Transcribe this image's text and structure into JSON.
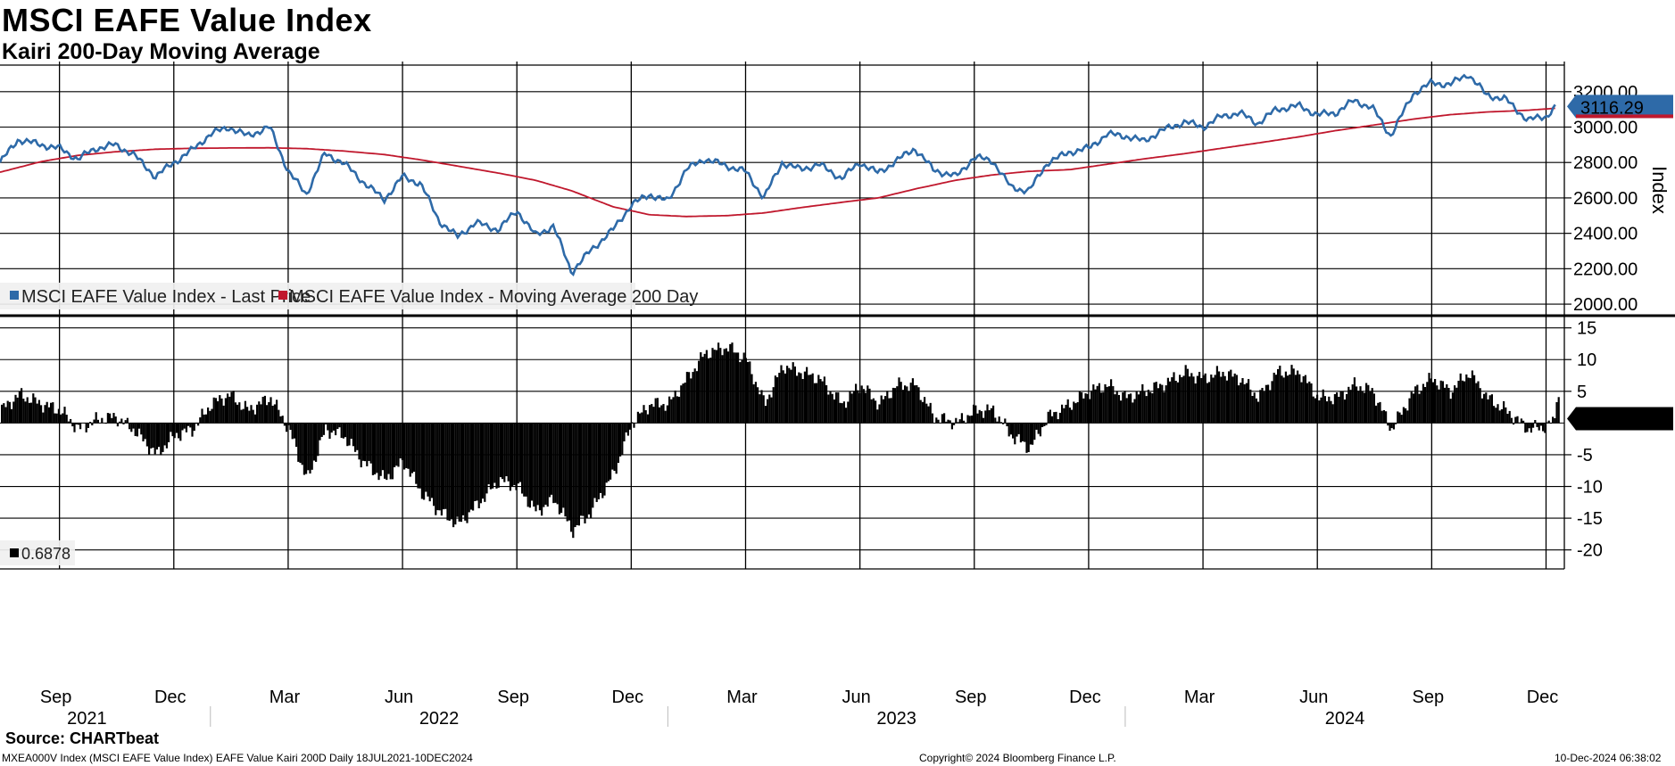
{
  "title": "MSCI EAFE Value Index",
  "subtitle": "Kairi 200-Day Moving Average",
  "source": "Source: CHARTbeat",
  "footer_left": "MXEA000V Index (MSCI EAFE Value Index) EAFE Value Kairi 200D  Daily 18JUL2021-10DEC2024",
  "footer_center": "Copyright© 2024 Bloomberg Finance L.P.",
  "footer_right": "10-Dec-2024 06:38:02",
  "colors": {
    "price": "#2e6aa8",
    "ma": "#c0182d",
    "kairi": "#000000",
    "highlight": "#2e6aa8"
  },
  "chart_data": [
    {
      "type": "line",
      "ylabel": "Index",
      "ylim": [
        1950,
        3350
      ],
      "yticks": [
        "2000.00",
        "2200.00",
        "2400.00",
        "2600.00",
        "2800.00",
        "3000.00",
        "3200.00"
      ],
      "last_value_label": "3116.29",
      "legend": [
        "MSCI EAFE Value Index - Last Price",
        "MSCI EAFE Value Index - Moving Average 200 Day"
      ],
      "series": [
        {
          "name": "MSCI EAFE Value Index - Last Price",
          "color": "#2e6aa8",
          "x": [
            2021.54,
            2021.58,
            2021.63,
            2021.67,
            2021.71,
            2021.75,
            2021.79,
            2021.83,
            2021.88,
            2021.92,
            2021.96,
            2022.0,
            2022.04,
            2022.08,
            2022.13,
            2022.17,
            2022.21,
            2022.25,
            2022.29,
            2022.33,
            2022.38,
            2022.42,
            2022.46,
            2022.5,
            2022.54,
            2022.58,
            2022.63,
            2022.67,
            2022.71,
            2022.75,
            2022.79,
            2022.83,
            2022.88,
            2022.92,
            2022.96,
            2023.0,
            2023.04,
            2023.08,
            2023.13,
            2023.17,
            2023.21,
            2023.25,
            2023.29,
            2023.33,
            2023.38,
            2023.42,
            2023.46,
            2023.5,
            2023.54,
            2023.58,
            2023.63,
            2023.67,
            2023.71,
            2023.75,
            2023.79,
            2023.83,
            2023.88,
            2023.92,
            2023.96,
            2024.0,
            2024.04,
            2024.08,
            2024.13,
            2024.17,
            2024.21,
            2024.25,
            2024.29,
            2024.33,
            2024.38,
            2024.42,
            2024.46,
            2024.5,
            2024.54,
            2024.58,
            2024.63,
            2024.67,
            2024.71,
            2024.75,
            2024.79,
            2024.83,
            2024.88,
            2024.92,
            2024.94
          ],
          "values": [
            2800,
            2930,
            2900,
            2880,
            2820,
            2880,
            2900,
            2850,
            2720,
            2800,
            2870,
            2960,
            3000,
            2950,
            3000,
            2750,
            2620,
            2850,
            2800,
            2700,
            2590,
            2720,
            2680,
            2470,
            2380,
            2460,
            2420,
            2530,
            2390,
            2440,
            2180,
            2300,
            2420,
            2560,
            2620,
            2580,
            2760,
            2820,
            2780,
            2750,
            2600,
            2800,
            2760,
            2790,
            2710,
            2800,
            2740,
            2810,
            2880,
            2760,
            2720,
            2830,
            2810,
            2660,
            2640,
            2800,
            2860,
            2880,
            2960,
            2950,
            2920,
            2980,
            3030,
            3000,
            3060,
            3080,
            3020,
            3100,
            3120,
            3070,
            3080,
            3150,
            3110,
            2950,
            3190,
            3250,
            3240,
            3300,
            3180,
            3160,
            3040,
            3060,
            3116
          ]
        },
        {
          "name": "MSCI EAFE Value Index - Moving Average 200 Day",
          "color": "#c0182d",
          "x": [
            2021.54,
            2021.63,
            2021.71,
            2021.79,
            2021.88,
            2021.96,
            2022.04,
            2022.13,
            2022.21,
            2022.29,
            2022.38,
            2022.46,
            2022.54,
            2022.63,
            2022.71,
            2022.79,
            2022.88,
            2022.96,
            2023.04,
            2023.13,
            2023.21,
            2023.29,
            2023.38,
            2023.46,
            2023.54,
            2023.63,
            2023.71,
            2023.79,
            2023.88,
            2023.96,
            2024.04,
            2024.13,
            2024.21,
            2024.29,
            2024.38,
            2024.46,
            2024.54,
            2024.63,
            2024.71,
            2024.79,
            2024.88,
            2024.94
          ],
          "values": [
            2745,
            2805,
            2840,
            2860,
            2875,
            2880,
            2882,
            2883,
            2878,
            2865,
            2845,
            2815,
            2780,
            2740,
            2700,
            2640,
            2550,
            2505,
            2495,
            2500,
            2515,
            2545,
            2575,
            2600,
            2650,
            2700,
            2730,
            2750,
            2760,
            2790,
            2820,
            2850,
            2880,
            2910,
            2945,
            2980,
            3010,
            3045,
            3070,
            3085,
            3095,
            3106
          ]
        }
      ]
    },
    {
      "type": "bar",
      "title": "",
      "ylim": [
        -23,
        16.5
      ],
      "yticks": [
        "15",
        "10",
        "5",
        "-5",
        "-10",
        "-15",
        "-20"
      ],
      "last_value_label": "0.6878",
      "legend": [
        "0.6878"
      ],
      "series": [
        {
          "name": "Kairi 200D",
          "x": [
            2021.54,
            2021.58,
            2021.63,
            2021.67,
            2021.71,
            2021.75,
            2021.79,
            2021.83,
            2021.88,
            2021.92,
            2021.96,
            2022.0,
            2022.04,
            2022.08,
            2022.13,
            2022.17,
            2022.21,
            2022.25,
            2022.29,
            2022.33,
            2022.38,
            2022.42,
            2022.46,
            2022.5,
            2022.54,
            2022.58,
            2022.63,
            2022.67,
            2022.71,
            2022.75,
            2022.79,
            2022.83,
            2022.88,
            2022.92,
            2022.96,
            2023.0,
            2023.04,
            2023.08,
            2023.13,
            2023.17,
            2023.21,
            2023.25,
            2023.29,
            2023.33,
            2023.38,
            2023.42,
            2023.46,
            2023.5,
            2023.54,
            2023.58,
            2023.63,
            2023.67,
            2023.71,
            2023.75,
            2023.79,
            2023.83,
            2023.88,
            2023.92,
            2023.96,
            2024.0,
            2024.04,
            2024.08,
            2024.13,
            2024.17,
            2024.21,
            2024.25,
            2024.29,
            2024.33,
            2024.38,
            2024.42,
            2024.46,
            2024.5,
            2024.54,
            2024.58,
            2024.63,
            2024.67,
            2024.71,
            2024.75,
            2024.79,
            2024.83,
            2024.88,
            2024.92,
            2024.94
          ],
          "values": [
            2,
            4.5,
            3,
            2,
            -1,
            0.5,
            1,
            -1,
            -5,
            -2,
            -1,
            3,
            4.5,
            2,
            4,
            -1,
            -9,
            -1,
            -2,
            -6,
            -9,
            -6,
            -11,
            -14,
            -16,
            -13,
            -9,
            -10,
            -14,
            -12,
            -17,
            -14,
            -8,
            0,
            3,
            3,
            7,
            11,
            12,
            10,
            3,
            9,
            8,
            7,
            3,
            6,
            3,
            6,
            6,
            1,
            0,
            2,
            2,
            -2,
            -4,
            1,
            3,
            5,
            6,
            4,
            5,
            6,
            8,
            7,
            8,
            7,
            4,
            8,
            8,
            4,
            4,
            6,
            5,
            -1,
            5,
            7,
            5,
            8,
            4,
            2,
            -1,
            -0.5,
            0.69
          ]
        }
      ]
    }
  ],
  "x_axis": {
    "months": [
      "Sep",
      "Dec",
      "Mar",
      "Jun",
      "Sep",
      "Dec",
      "Mar",
      "Jun",
      "Sep",
      "Dec",
      "Mar",
      "Jun",
      "Sep",
      "Dec"
    ],
    "years": [
      "2021",
      "2022",
      "2023",
      "2024"
    ]
  }
}
